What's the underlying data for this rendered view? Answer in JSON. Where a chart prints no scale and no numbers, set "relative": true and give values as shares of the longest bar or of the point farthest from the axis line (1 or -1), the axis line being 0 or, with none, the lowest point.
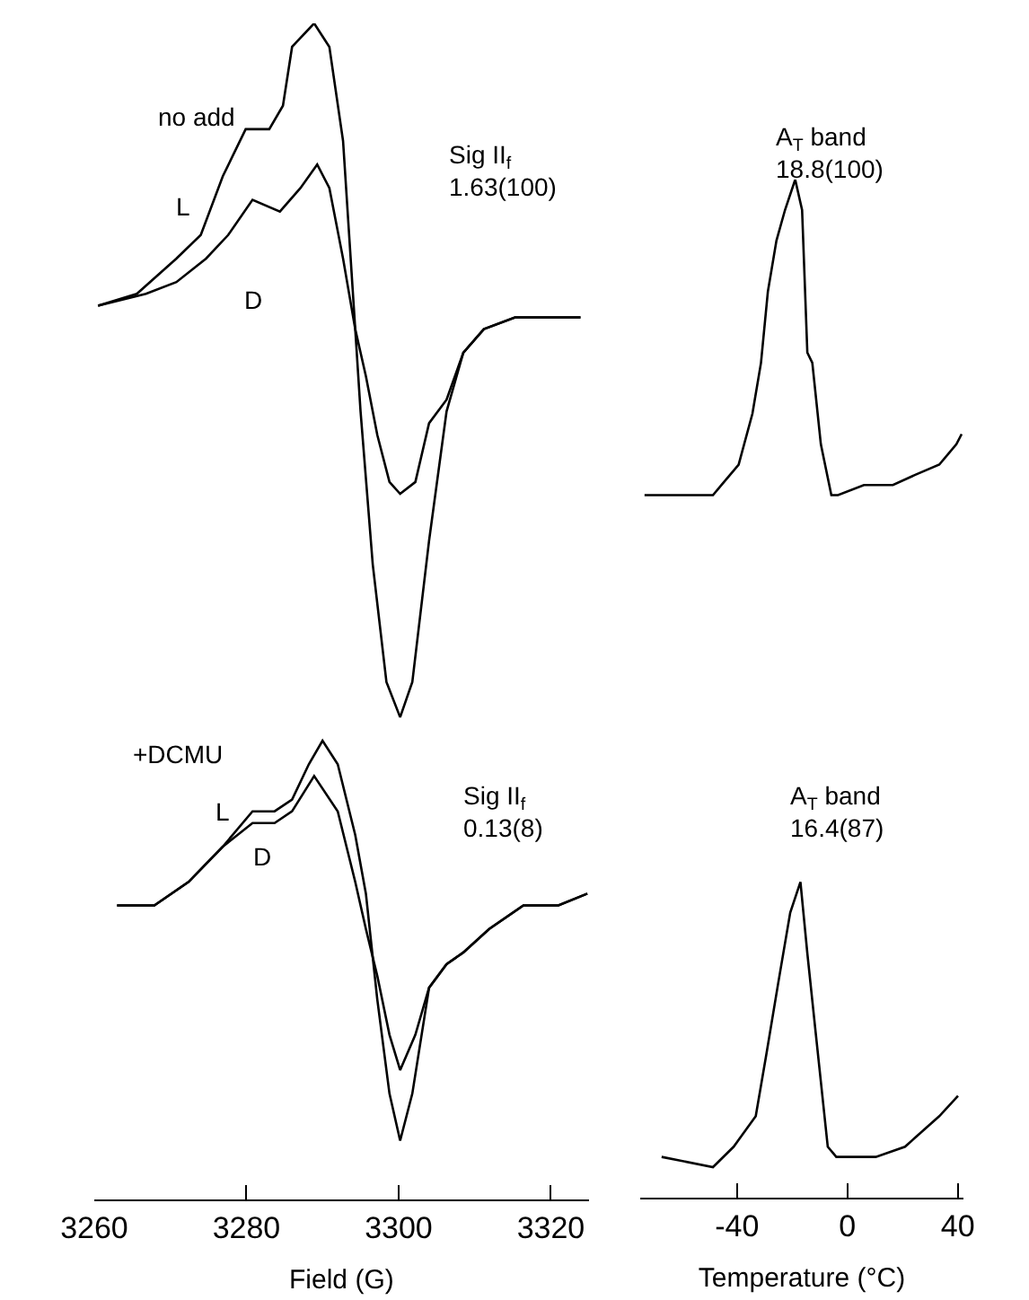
{
  "chart_data": [
    {
      "type": "line",
      "relative": true,
      "xlim": [
        3260,
        3325
      ],
      "xticks": [
        3260,
        3280,
        3300,
        3320
      ],
      "tick_labels": "x",
      "xlabel": "Field (G)",
      "annotations": [
        "no add",
        "Sig II$_{f}$\n1.63(100)",
        "+DCMU",
        "Sig II$_{f}$\n0.13(8)"
      ],
      "series": [
        {
          "name": "L",
          "color": "#000000",
          "x": [
            3260.5,
            3265.6,
            3270.8,
            3274,
            3276.9,
            3279.9,
            3283,
            3284.8,
            3286,
            3288.9,
            3290.9,
            3292.7,
            3295,
            3296.6,
            3298.4,
            3300.2,
            3301.8,
            3304,
            3306.3,
            3308.5,
            3311.2,
            3315.3,
            3319.8,
            3323.9
          ],
          "values": [
            0.76,
            0.77,
            0.8,
            0.82,
            0.87,
            0.91,
            0.91,
            0.93,
            0.98,
            1.0,
            0.98,
            0.9,
            0.67,
            0.54,
            0.44,
            0.41,
            0.44,
            0.56,
            0.67,
            0.72,
            0.74,
            0.75,
            0.75,
            0.75
          ]
        },
        {
          "name": "D",
          "color": "#000000",
          "x": [
            3260.5,
            3266.8,
            3270.8,
            3274.7,
            3277.6,
            3280.8,
            3284.4,
            3287.1,
            3289.3,
            3290.9,
            3292.7,
            3294.3,
            3295.7,
            3297.2,
            3298.8,
            3300.2,
            3302.2,
            3304,
            3306.3,
            3308.5,
            3311.2,
            3315.3,
            3319.8,
            3323.9
          ],
          "values": [
            0.76,
            0.77,
            0.78,
            0.8,
            0.82,
            0.85,
            0.84,
            0.86,
            0.88,
            0.86,
            0.8,
            0.74,
            0.7,
            0.65,
            0.61,
            0.6,
            0.61,
            0.66,
            0.68,
            0.72,
            0.74,
            0.75,
            0.75,
            0.75
          ]
        },
        {
          "name": "L",
          "color": "#000000",
          "x": [
            3263,
            3267.9,
            3272.4,
            3276.9,
            3280.8,
            3283.7,
            3286,
            3288.2,
            3290,
            3292,
            3294.3,
            3295.7,
            3297.2,
            3298.8,
            3300.2,
            3301.8,
            3304,
            3306.3,
            3308.5,
            3311.9,
            3316.4,
            3321,
            3324.8
          ],
          "values": [
            0.25,
            0.25,
            0.27,
            0.3,
            0.33,
            0.33,
            0.34,
            0.37,
            0.39,
            0.37,
            0.31,
            0.26,
            0.17,
            0.09,
            0.05,
            0.09,
            0.18,
            0.2,
            0.21,
            0.23,
            0.25,
            0.25,
            0.26
          ]
        },
        {
          "name": "D",
          "color": "#000000",
          "x": [
            3263,
            3267.9,
            3272.4,
            3276.9,
            3280.8,
            3283.7,
            3286,
            3288.9,
            3292,
            3294.3,
            3295.7,
            3297.2,
            3298.8,
            3300.2,
            3302.2,
            3304,
            3306.3,
            3308.5,
            3311.9,
            3316.4,
            3321,
            3324.8
          ],
          "values": [
            0.25,
            0.25,
            0.27,
            0.3,
            0.32,
            0.32,
            0.33,
            0.36,
            0.33,
            0.27,
            0.23,
            0.19,
            0.14,
            0.11,
            0.14,
            0.18,
            0.2,
            0.21,
            0.23,
            0.25,
            0.25,
            0.26
          ]
        }
      ]
    },
    {
      "type": "line",
      "relative": true,
      "xlim": [
        -75,
        42
      ],
      "xticks": [
        -40,
        0,
        40
      ],
      "tick_labels": "x",
      "xlabel": "Temperature (°C)",
      "annotations": [
        "A$_{T}$ band\n18.8(100)",
        "A$_{T}$ band\n16.4(87)"
      ],
      "series": [
        {
          "color": "#000000",
          "x": [
            -73.5,
            -48.7,
            -45.6,
            -39.4,
            -34.4,
            -31.3,
            -28.8,
            -25.7,
            -22.6,
            -18.9,
            -16.4,
            -14.5,
            -12.7,
            -9.6,
            -5.8,
            -3.4,
            6,
            16.5,
            24.6,
            33.3,
            39.5,
            41.4
          ],
          "values": [
            0.69,
            0.69,
            0.7,
            0.72,
            0.77,
            0.82,
            0.89,
            0.94,
            0.97,
            1.0,
            0.97,
            0.83,
            0.82,
            0.74,
            0.69,
            0.69,
            0.7,
            0.7,
            0.71,
            0.72,
            0.74,
            0.75
          ]
        },
        {
          "color": "#000000",
          "x": [
            -67.3,
            -48.7,
            -41.2,
            -33.2,
            -29.4,
            -25.1,
            -20.7,
            -17,
            -14.5,
            -11.4,
            -7.1,
            -4,
            10.3,
            20.9,
            33.3,
            40.1
          ],
          "values": [
            0.04,
            0.03,
            0.05,
            0.08,
            0.14,
            0.21,
            0.28,
            0.31,
            0.24,
            0.16,
            0.05,
            0.04,
            0.04,
            0.05,
            0.08,
            0.1
          ]
        }
      ]
    }
  ]
}
